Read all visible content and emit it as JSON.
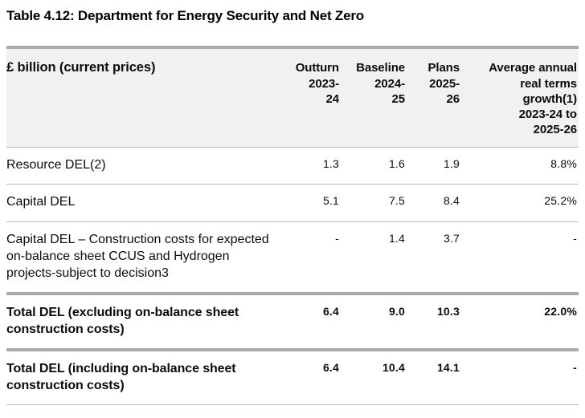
{
  "title": "Table 4.12: Department for Energy Security and Net Zero",
  "colors": {
    "text": "#0b0c0c",
    "header_background": "#f2f1ef",
    "border_thick": "#a7aaac",
    "border_thin": "#b7b7b7"
  },
  "table": {
    "unit_header": "£ billion (current prices)",
    "column_headers": [
      "Outturn\n2023-\n24",
      "Baseline\n2024-\n25",
      "Plans\n2025-\n26",
      "Average annual\nreal terms\ngrowth(1)\n2023-24 to\n2025-26"
    ],
    "rows": [
      {
        "label": "Resource DEL(2)",
        "values": [
          "1.3",
          "1.6",
          "1.9",
          "8.8%"
        ]
      },
      {
        "label": "Capital DEL",
        "values": [
          "5.1",
          "7.5",
          "8.4",
          "25.2%"
        ]
      },
      {
        "label": "Capital DEL – Construction costs for expected on-balance sheet CCUS and Hydrogen projects-subject to decision3",
        "values": [
          "-",
          "1.4",
          "3.7",
          "-"
        ]
      },
      {
        "label": "Total DEL (excluding on-balance sheet construction costs)",
        "values": [
          "6.4",
          "9.0",
          "10.3",
          "22.0%"
        ]
      },
      {
        "label": "Total DEL (including on-balance sheet construction costs)",
        "values": [
          "6.4",
          "10.4",
          "14.1",
          "-"
        ]
      }
    ]
  }
}
